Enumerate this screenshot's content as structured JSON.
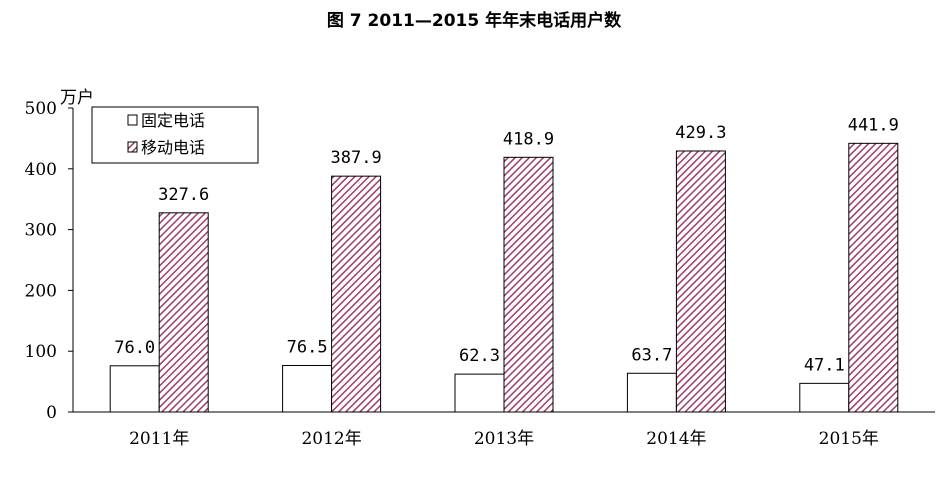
{
  "chart_data": {
    "type": "bar",
    "title": "图 7 2011—2015 年年末电话用户数",
    "ylabel": "万户",
    "ylim": [
      0,
      500
    ],
    "yticks": [
      "0",
      "100",
      "200",
      "300",
      "400",
      "500"
    ],
    "categories": [
      "2011年",
      "2012年",
      "2013年",
      "2014年",
      "2015年"
    ],
    "series": [
      {
        "name": "固定电话",
        "values": [
          76.0,
          76.5,
          62.3,
          63.7,
          47.1
        ],
        "labels": [
          "76.0",
          "76.5",
          "62.3",
          "63.7",
          "47.1"
        ],
        "fill": "#ffffff"
      },
      {
        "name": "移动电话",
        "values": [
          327.6,
          387.9,
          418.9,
          429.3,
          441.9
        ],
        "labels": [
          "327.6",
          "387.9",
          "418.9",
          "429.3",
          "441.9"
        ],
        "fill": "hatch-pink"
      }
    ],
    "legend": "top-left",
    "grid": false
  },
  "colors": {
    "hatch_stripe": "#a03c6a",
    "hatch_bg": "#ffffff",
    "axis": "#000000"
  }
}
